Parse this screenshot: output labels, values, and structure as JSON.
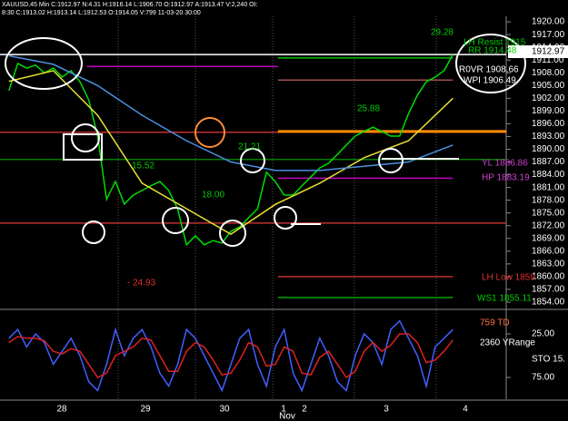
{
  "header": {
    "line1": "XAUUSD,45 Min C:1912.97 N:4.31 H:1916.14 L:1906.70 O:1912.97 A:1913.47 V:2,240 OI:",
    "line2": "8:30 C:1913.02 H:1913.14 L:1912.53 O:1914.05 V:799 11-03-20 30:00"
  },
  "time_axis": {
    "labels": [
      "28",
      "29",
      "30",
      "1",
      "2",
      "3",
      "4"
    ],
    "month": "Nov"
  },
  "chart_data": [
    {
      "type": "line",
      "x": [
        0,
        1,
        2,
        3,
        4,
        5,
        6,
        7,
        8,
        9,
        10,
        11,
        12,
        13,
        14,
        15,
        16,
        17,
        18,
        19,
        20,
        21,
        22,
        23,
        24,
        25,
        26,
        27,
        28,
        29,
        30,
        31,
        32,
        33,
        34,
        35,
        36,
        37,
        38,
        39,
        40,
        41,
        42,
        43,
        44,
        45,
        46,
        47,
        48,
        49,
        50
      ],
      "xlim": [
        -1,
        56
      ],
      "series": [
        {
          "color": "#00dd00",
          "values": [
            1903.8,
            1910.2,
            1909.1,
            1909.8,
            1908.0,
            1909.1,
            1907.0,
            1908.5,
            1905.9,
            1901.6,
            1893.1,
            1878.2,
            1882.4,
            1877.1,
            1879.2,
            1880.3,
            1881.4,
            1882.4,
            1880.3,
            1876.0,
            1867.5,
            1869.6,
            1867.5,
            1868.5,
            1867.9,
            1870.7,
            1871.7,
            1873.9,
            1876.0,
            1884.6,
            1882.4,
            1879.2,
            1879.2,
            1881.4,
            1883.5,
            1885.6,
            1886.7,
            1888.8,
            1891.0,
            1893.1,
            1894.2,
            1895.2,
            1894.2,
            1893.1,
            1893.1,
            1898.4,
            1902.7,
            1905.9,
            1907.0,
            1908.5,
            1912.3
          ]
        },
        {
          "color": "#e8e030",
          "values": [
            1906,
            null,
            null,
            null,
            null,
            1908.5,
            null,
            null,
            null,
            null,
            1898,
            null,
            null,
            null,
            null,
            1882,
            null,
            null,
            null,
            null,
            1876,
            null,
            null,
            null,
            null,
            1870,
            null,
            null,
            null,
            null,
            1877,
            null,
            null,
            null,
            null,
            1882,
            null,
            null,
            null,
            null,
            1888,
            null,
            null,
            null,
            null,
            1892,
            null,
            null,
            null,
            null,
            1902
          ]
        },
        {
          "color": "#4a90e0",
          "values": [
            1912,
            null,
            null,
            null,
            null,
            1910,
            null,
            null,
            null,
            null,
            1905,
            null,
            null,
            null,
            null,
            1898,
            null,
            null,
            null,
            null,
            1892,
            null,
            null,
            null,
            null,
            1887,
            null,
            null,
            null,
            null,
            1885,
            null,
            null,
            null,
            null,
            1885,
            null,
            null,
            null,
            null,
            1886,
            null,
            null,
            null,
            null,
            1887,
            null,
            null,
            null,
            null,
            1891
          ]
        }
      ],
      "levels": [
        {
          "value": 1912.3,
          "color": "#ffffff",
          "x": [
            -1,
            56
          ]
        },
        {
          "value": 1911.5,
          "color": "#00c000",
          "x": [
            30.3,
            50
          ]
        },
        {
          "value": 1909.5,
          "color": "#c000c0",
          "x": [
            8.8,
            30.3
          ]
        },
        {
          "value": 1906.3,
          "color": "#a05050",
          "x": [
            30.3,
            50
          ]
        },
        {
          "value": 1894.0,
          "color": "#c03030",
          "x": [
            -1,
            56
          ]
        },
        {
          "value": 1894.2,
          "color": "#ff8c00",
          "x": [
            30.3,
            56
          ]
        },
        {
          "value": 1887.6,
          "color": "#008000",
          "x": [
            -1,
            56
          ]
        },
        {
          "value": 1883.2,
          "color": "#c000c0",
          "x": [
            30.3,
            50
          ]
        },
        {
          "value": 1872.6,
          "color": "#c03030",
          "x": [
            -1,
            56
          ]
        },
        {
          "value": 1860.0,
          "color": "#c03030",
          "x": [
            30.3,
            50
          ]
        },
        {
          "value": 1855.1,
          "color": "#00a000",
          "x": [
            30.3,
            50
          ]
        }
      ],
      "last_price": 1912.97,
      "ylim": [
        1852.5,
        1921.3
      ],
      "yticks": [
        {
          "value": 1920,
          "label": "1920.00"
        },
        {
          "value": 1917,
          "label": "1917.00"
        },
        {
          "value": 1914,
          "label": "1914.00"
        },
        {
          "value": 1911,
          "label": "1911.00"
        },
        {
          "value": 1908,
          "label": "1908.00"
        },
        {
          "value": 1905,
          "label": "1905.00"
        },
        {
          "value": 1902,
          "label": "1902.00"
        },
        {
          "value": 1899,
          "label": "1899.00"
        },
        {
          "value": 1896,
          "label": "1896.00"
        },
        {
          "value": 1893,
          "label": "1893.00"
        },
        {
          "value": 1890,
          "label": "1890.00"
        },
        {
          "value": 1887,
          "label": "1887.00"
        },
        {
          "value": 1884,
          "label": "1884.00"
        },
        {
          "value": 1881,
          "label": "1881.00"
        },
        {
          "value": 1878,
          "label": "1878.00"
        },
        {
          "value": 1875,
          "label": "1875.00"
        },
        {
          "value": 1872,
          "label": "1872.00"
        },
        {
          "value": 1869,
          "label": "1869.00"
        },
        {
          "value": 1866,
          "label": "1866.00"
        },
        {
          "value": 1863,
          "label": "1863.00"
        },
        {
          "value": 1860,
          "label": "1860.00"
        },
        {
          "value": 1857,
          "label": "1857.00"
        },
        {
          "value": 1854,
          "label": "1854.00"
        }
      ],
      "annotations": [
        "29.28",
        "LH Resist 1915",
        "RR 1914.48",
        "R0VR 1908.66",
        "WPI 1906.49",
        "25.88",
        "15.52",
        "18.00",
        "21.21",
        "- 24.93",
        "YL 1886.86",
        "HP 1883.19",
        "LH Low 1859",
        "WS1 1855.11"
      ]
    },
    {
      "type": "line",
      "x": [
        0,
        1,
        2,
        3,
        4,
        5,
        6,
        7,
        8,
        9,
        10,
        11,
        12,
        13,
        14,
        15,
        16,
        17,
        18,
        19,
        20,
        21,
        22,
        23,
        24,
        25,
        26,
        27,
        28,
        29,
        30,
        31,
        32,
        33,
        34,
        35,
        36,
        37,
        38,
        39,
        40,
        41,
        42,
        43,
        44,
        45,
        46,
        47,
        48,
        49,
        50
      ],
      "xlim": [
        -1,
        56
      ],
      "series": [
        {
          "color": "#4060ff",
          "values": [
            30,
            20,
            40,
            25,
            35,
            60,
            45,
            30,
            50,
            80,
            90,
            60,
            20,
            50,
            30,
            20,
            40,
            70,
            85,
            60,
            20,
            30,
            50,
            70,
            90,
            60,
            30,
            20,
            60,
            85,
            40,
            20,
            70,
            90,
            60,
            30,
            50,
            80,
            90,
            50,
            25,
            35,
            60,
            20,
            10,
            30,
            50,
            85,
            40,
            30,
            20
          ]
        },
        {
          "color": "#e02020",
          "values": [
            35,
            28,
            30,
            30,
            33,
            45,
            48,
            42,
            45,
            60,
            75,
            70,
            50,
            45,
            40,
            30,
            32,
            50,
            68,
            68,
            45,
            35,
            40,
            55,
            72,
            70,
            55,
            35,
            40,
            62,
            60,
            40,
            45,
            70,
            72,
            52,
            45,
            60,
            75,
            68,
            45,
            35,
            45,
            38,
            25,
            25,
            35,
            58,
            55,
            45,
            32
          ]
        }
      ],
      "ylim": [
        0,
        100
      ],
      "inverted": true,
      "yticks": [
        {
          "value": 25,
          "label": "25.00"
        },
        {
          "value": 75,
          "label": "75.00"
        }
      ],
      "annotations": [
        "759 TD",
        "2360 YRange",
        "STO 15."
      ]
    }
  ]
}
